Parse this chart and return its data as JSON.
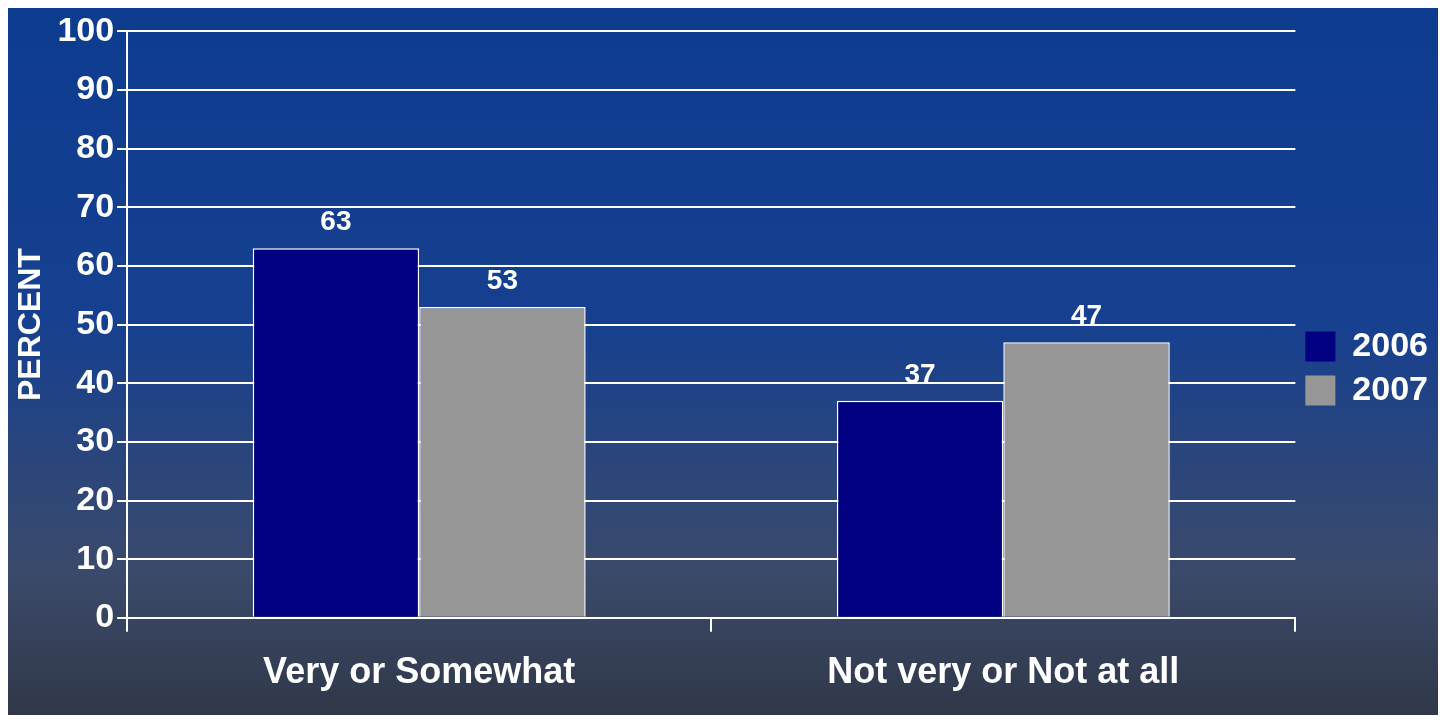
{
  "chart_data": {
    "type": "bar",
    "ylabel": "PERCENT",
    "categories": [
      "Very or Somewhat",
      "Not very or Not at all"
    ],
    "series": [
      {
        "name": "2006",
        "color": "#000080",
        "values": [
          63,
          37
        ]
      },
      {
        "name": "2007",
        "color": "#969696",
        "values": [
          53,
          47
        ]
      }
    ],
    "ylim": [
      0,
      100
    ],
    "yticks": [
      0,
      10,
      20,
      30,
      40,
      50,
      60,
      70,
      80,
      90,
      100
    ],
    "grid": "y",
    "legend": "right",
    "data_labels": true
  }
}
